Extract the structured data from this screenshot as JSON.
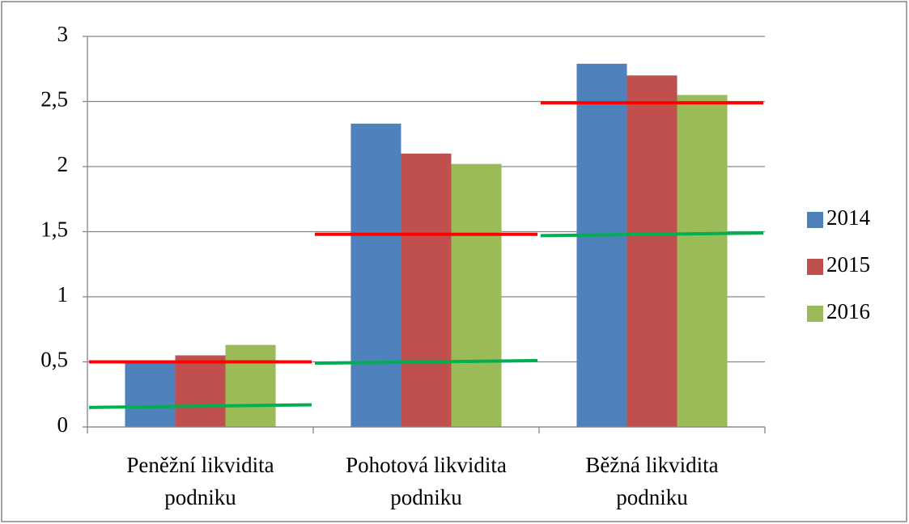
{
  "chart_data": {
    "type": "bar",
    "categories": [
      [
        "Peněžní likvidita",
        "podniku"
      ],
      [
        "Pohotová likvidita",
        "podniku"
      ],
      [
        "Běžná likvidita",
        "podniku"
      ]
    ],
    "series": [
      {
        "name": "2014",
        "color": "#4f81bd",
        "values": [
          0.5,
          2.33,
          2.79
        ]
      },
      {
        "name": "2015",
        "color": "#c0504d",
        "values": [
          0.55,
          2.1,
          2.7
        ]
      },
      {
        "name": "2016",
        "color": "#9bbb59",
        "values": [
          0.63,
          2.02,
          2.55
        ]
      }
    ],
    "lines": [
      {
        "color": "#ff0000",
        "values": [
          [
            0.5,
            0.5
          ],
          [
            1.48,
            1.48
          ],
          [
            2.49,
            2.49
          ]
        ]
      },
      {
        "color": "#00b050",
        "values": [
          [
            0.15,
            0.17
          ],
          [
            0.49,
            0.51
          ],
          [
            1.47,
            1.49
          ]
        ]
      }
    ],
    "ylim": [
      0,
      3
    ],
    "yticks": [
      0,
      {
        "value": 0.5,
        "label": "0,5"
      },
      1,
      {
        "value": 1.5,
        "label": "1,5"
      },
      2,
      {
        "value": 2.5,
        "label": "2,5"
      },
      3
    ],
    "grid": true,
    "legend": "right"
  }
}
